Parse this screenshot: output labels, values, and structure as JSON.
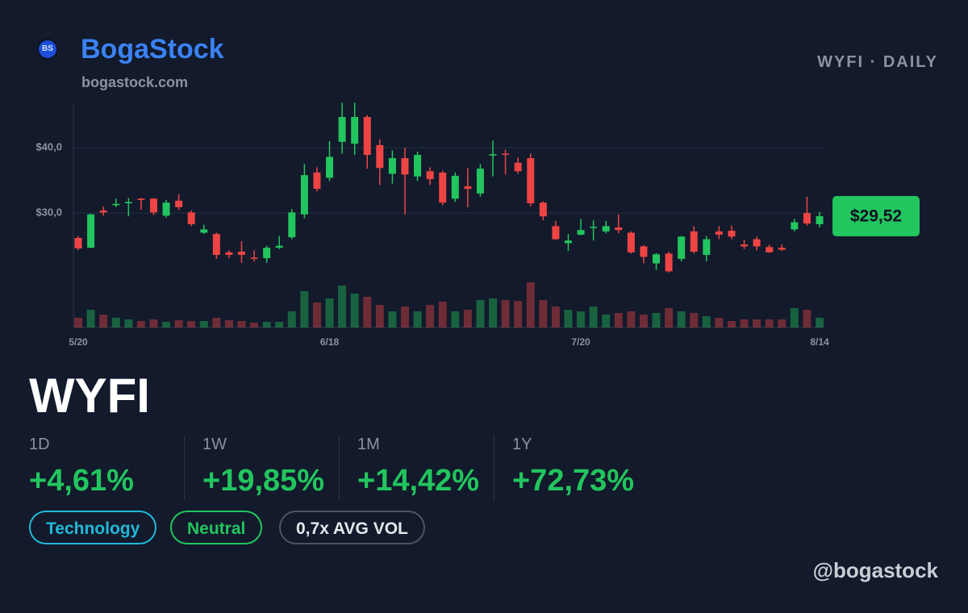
{
  "brand": {
    "logo": "BS",
    "name": "BogaStock",
    "site": "bogastock.com",
    "handle": "@bogastock"
  },
  "header": {
    "subtitle": "WYFI · DAILY"
  },
  "ticker": "WYFI",
  "stats": [
    {
      "label": "1D",
      "value": "+4,61%"
    },
    {
      "label": "1W",
      "value": "+19,85%"
    },
    {
      "label": "1M",
      "value": "+14,42%"
    },
    {
      "label": "1Y",
      "value": "+72,73%"
    }
  ],
  "tags": [
    "Technology",
    "Neutral",
    "0,7x AVG VOL"
  ],
  "chart_data": {
    "type": "candlestick",
    "categories": [
      "5/20",
      null,
      null,
      null,
      null,
      null,
      null,
      null,
      null,
      null,
      null,
      null,
      null,
      null,
      null,
      null,
      null,
      null,
      null,
      null,
      "6/18",
      null,
      null,
      null,
      null,
      null,
      null,
      null,
      null,
      null,
      null,
      null,
      null,
      null,
      null,
      null,
      null,
      null,
      null,
      null,
      "7/20",
      null,
      null,
      null,
      null,
      null,
      null,
      null,
      null,
      null,
      null,
      null,
      null,
      null,
      null,
      null,
      null,
      null,
      null,
      "8/14"
    ],
    "open": [
      26.2,
      24.7,
      30.4,
      31.2,
      31.5,
      32.2,
      32.2,
      29.6,
      31.9,
      30.1,
      27.0,
      26.8,
      24.0,
      24.1,
      23.2,
      23.1,
      24.7,
      26.3,
      29.8,
      36.2,
      35.4,
      40.9,
      40.6,
      44.7,
      40.4,
      36.0,
      38.4,
      35.6,
      36.4,
      36.2,
      32.2,
      34.1,
      33.0,
      38.8,
      39.1,
      37.7,
      38.4,
      31.6,
      28.0,
      25.4,
      26.7,
      27.7,
      27.2,
      27.8,
      27.0,
      24.9,
      22.3,
      23.8,
      23.0,
      27.2,
      23.6,
      27.2,
      27.3,
      25.2,
      26.0,
      24.8,
      24.7,
      27.5,
      30.0,
      28.3
    ],
    "high": [
      26.5,
      29.9,
      31.0,
      32.2,
      32.3,
      32.3,
      32.3,
      32.0,
      32.9,
      30.4,
      28.2,
      27.0,
      24.3,
      25.7,
      24.3,
      25.0,
      26.5,
      30.6,
      37.5,
      37.0,
      41.0,
      46.9,
      46.9,
      45.0,
      41.3,
      39.6,
      40.0,
      39.4,
      37.0,
      36.5,
      36.2,
      36.9,
      37.5,
      41.1,
      39.7,
      38.5,
      39.1,
      31.8,
      28.8,
      26.8,
      29.1,
      28.9,
      28.8,
      29.8,
      27.2,
      25.1,
      23.9,
      24.1,
      26.5,
      28.0,
      26.5,
      28.0,
      28.1,
      25.9,
      26.4,
      25.2,
      25.2,
      29.1,
      32.5,
      30.2
    ],
    "low": [
      24.3,
      24.6,
      29.6,
      30.9,
      29.5,
      30.5,
      29.7,
      29.3,
      30.5,
      28.0,
      26.8,
      23.0,
      23.1,
      22.4,
      22.6,
      22.4,
      24.5,
      26.0,
      29.2,
      33.3,
      34.9,
      39.1,
      38.9,
      36.8,
      34.3,
      34.5,
      29.8,
      34.9,
      34.3,
      31.2,
      31.7,
      30.9,
      32.5,
      35.6,
      35.9,
      36.0,
      31.0,
      28.9,
      25.9,
      24.2,
      26.6,
      25.8,
      26.9,
      26.9,
      23.8,
      22.3,
      21.3,
      20.9,
      22.6,
      23.8,
      22.6,
      26.0,
      26.0,
      24.5,
      24.3,
      23.9,
      24.2,
      27.2,
      28.1,
      27.8
    ],
    "close": [
      24.6,
      29.8,
      30.1,
      31.4,
      31.7,
      32.0,
      30.1,
      31.6,
      30.9,
      28.3,
      27.5,
      23.6,
      23.6,
      23.6,
      23.0,
      24.7,
      25.0,
      30.1,
      35.8,
      33.7,
      38.6,
      44.7,
      44.7,
      38.9,
      36.9,
      38.4,
      35.9,
      38.9,
      35.2,
      31.6,
      35.7,
      33.7,
      36.8,
      39.0,
      39.0,
      36.4,
      31.5,
      29.5,
      26.0,
      25.8,
      27.4,
      27.9,
      28.0,
      27.4,
      24.0,
      23.3,
      23.7,
      21.1,
      26.4,
      24.1,
      26.0,
      26.7,
      26.4,
      24.9,
      24.9,
      24.0,
      24.4,
      28.6,
      28.4,
      29.52
    ],
    "volume": [
      12,
      22,
      16,
      12,
      10,
      8,
      10,
      7,
      9,
      8,
      8,
      12,
      9,
      8,
      6,
      7,
      7,
      20,
      45,
      31,
      36,
      52,
      42,
      38,
      28,
      20,
      26,
      20,
      28,
      32,
      20,
      22,
      34,
      36,
      34,
      33,
      56,
      34,
      26,
      22,
      20,
      26,
      16,
      18,
      20,
      16,
      18,
      24,
      20,
      18,
      14,
      12,
      8,
      10,
      10,
      10,
      10,
      24,
      22,
      12
    ],
    "last_price_label": "$29,52",
    "ylim": [
      12.5,
      46.8
    ],
    "yticks": [
      {
        "value": 30,
        "label": "$30,0"
      },
      {
        "value": 40,
        "label": "$40,0"
      }
    ],
    "vlim": [
      0,
      100
    ],
    "grid": true,
    "up_color": "#22c55e",
    "down_color": "#ef4444"
  }
}
